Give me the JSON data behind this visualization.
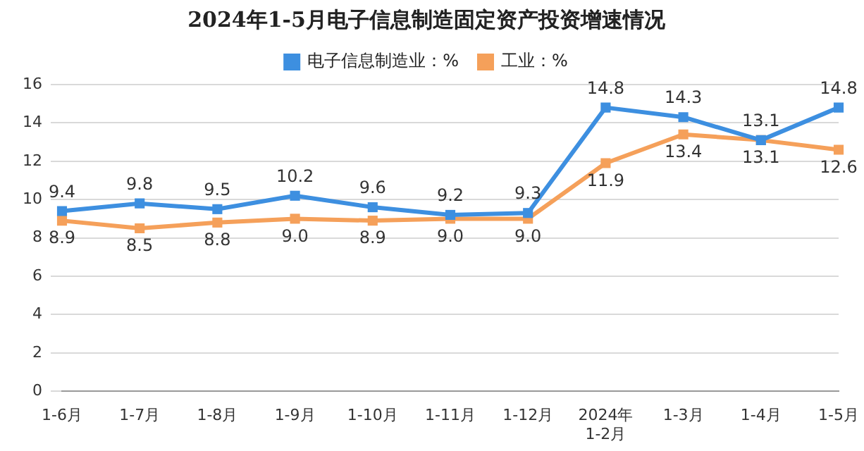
{
  "chart_data": {
    "type": "line",
    "title": "2024年1-5月电子信息制造固定资产投资增速情况",
    "categories": [
      "1-6月",
      "1-7月",
      "1-8月",
      "1-9月",
      "1-10月",
      "1-11月",
      "1-12月",
      "2024年\n1-2月",
      "1-3月",
      "1-4月",
      "1-5月"
    ],
    "series": [
      {
        "name": "电子信息制造业：%",
        "color": "#3d8fe0",
        "values": [
          9.4,
          9.8,
          9.5,
          10.2,
          9.6,
          9.2,
          9.3,
          14.8,
          14.3,
          13.1,
          14.8
        ],
        "value_labels": [
          "9.4",
          "9.8",
          "9.5",
          "10.2",
          "9.6",
          "9.2",
          "9.3",
          "14.8",
          "14.3",
          "13.1",
          "14.8"
        ]
      },
      {
        "name": "工业：%",
        "color": "#f5a05a",
        "values": [
          8.9,
          8.5,
          8.8,
          9.0,
          8.9,
          9.0,
          9.0,
          11.9,
          13.4,
          13.1,
          12.6
        ],
        "value_labels": [
          "8.9",
          "8.5",
          "8.8",
          "9.0",
          "8.9",
          "9.0",
          "9.0",
          "11.9",
          "13.4",
          "13.1",
          "12.6"
        ]
      }
    ],
    "ylim": [
      0,
      16
    ],
    "yticks": [
      0,
      2,
      4,
      6,
      8,
      10,
      12,
      14,
      16
    ],
    "grid": "y",
    "legend": "top",
    "marker": "square",
    "line_style": "solid"
  }
}
